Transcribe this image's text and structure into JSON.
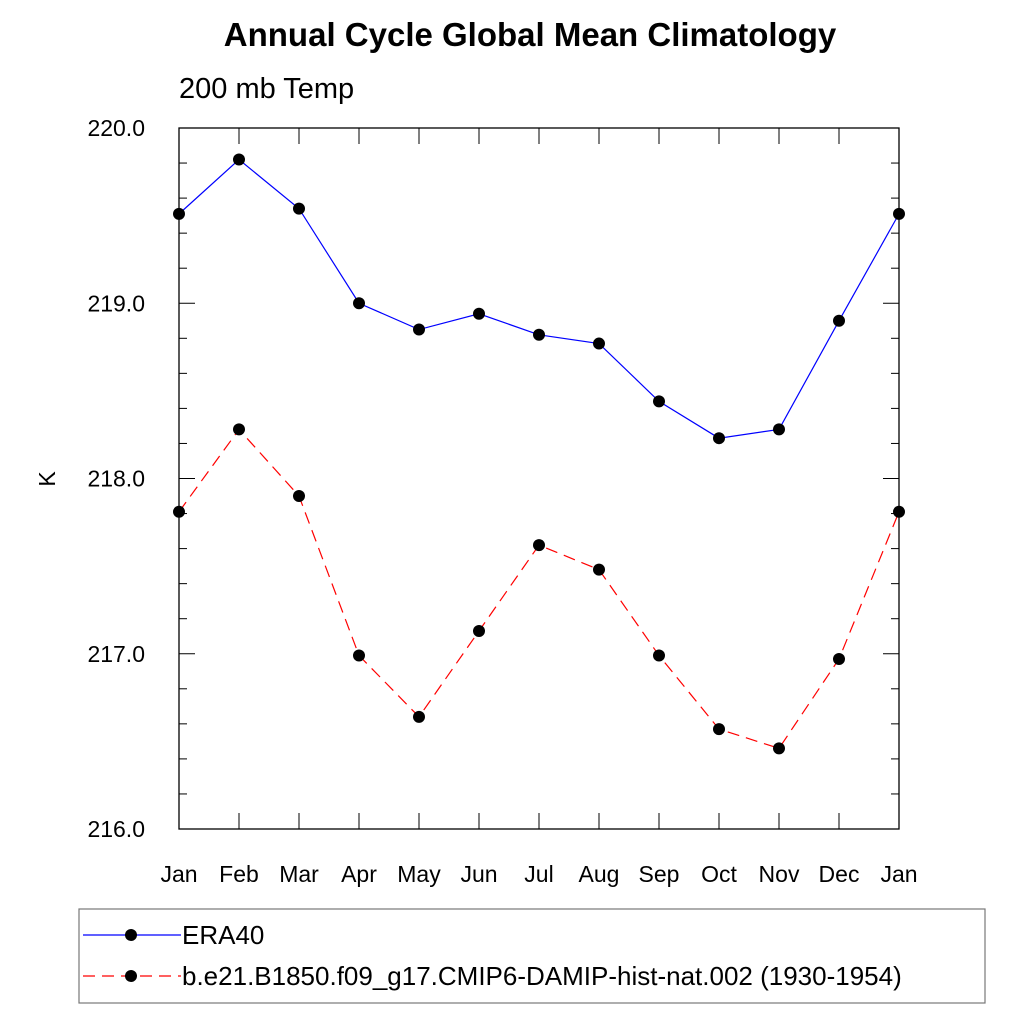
{
  "chart_data": {
    "type": "line",
    "title": "Annual Cycle Global Mean Climatology",
    "subtitle": "200 mb Temp",
    "xlabel": "",
    "ylabel": "K",
    "categories": [
      "Jan",
      "Feb",
      "Mar",
      "Apr",
      "May",
      "Jun",
      "Jul",
      "Aug",
      "Sep",
      "Oct",
      "Nov",
      "Dec",
      "Jan"
    ],
    "ylim": [
      216.0,
      220.0
    ],
    "yticks": [
      "216.0",
      "217.0",
      "218.0",
      "219.0",
      "220.0"
    ],
    "grid": false,
    "legend_position": "bottom",
    "series": [
      {
        "name": "ERA40",
        "color": "#0000ff",
        "dash": "solid",
        "marker": "filled-circle",
        "values": [
          219.51,
          219.82,
          219.54,
          219.0,
          218.85,
          218.94,
          218.82,
          218.77,
          218.44,
          218.23,
          218.28,
          218.9,
          219.51
        ]
      },
      {
        "name": "b.e21.B1850.f09_g17.CMIP6-DAMIP-hist-nat.002 (1930-1954)",
        "color": "#ff0000",
        "dash": "dashed",
        "marker": "filled-circle",
        "values": [
          217.81,
          218.28,
          217.9,
          216.99,
          216.64,
          217.13,
          217.62,
          217.48,
          216.99,
          216.57,
          216.46,
          216.97,
          217.81
        ]
      }
    ]
  }
}
